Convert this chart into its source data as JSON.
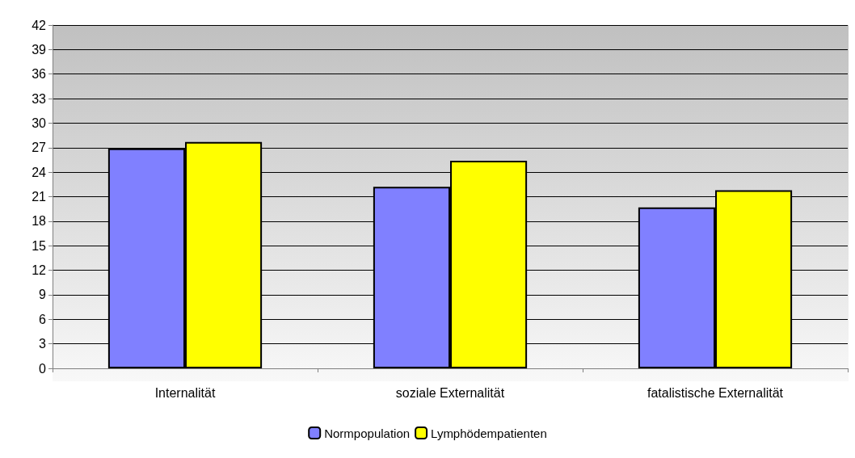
{
  "chart_data": {
    "type": "bar",
    "categories": [
      "Internalität",
      "soziale Externalität",
      "fatalistische Externalität"
    ],
    "series": [
      {
        "name": "Normpopulation",
        "color": "#8080ff",
        "values": [
          26.9,
          22.2,
          19.7
        ]
      },
      {
        "name": "Lymphödempatienten",
        "color": "#ffff00",
        "values": [
          27.7,
          25.4,
          21.8
        ]
      }
    ],
    "ylim": [
      0,
      42
    ],
    "yticks": [
      0,
      3,
      6,
      9,
      12,
      15,
      18,
      21,
      24,
      27,
      30,
      33,
      36,
      39,
      42
    ],
    "grid": "y",
    "legend": "bottom"
  }
}
